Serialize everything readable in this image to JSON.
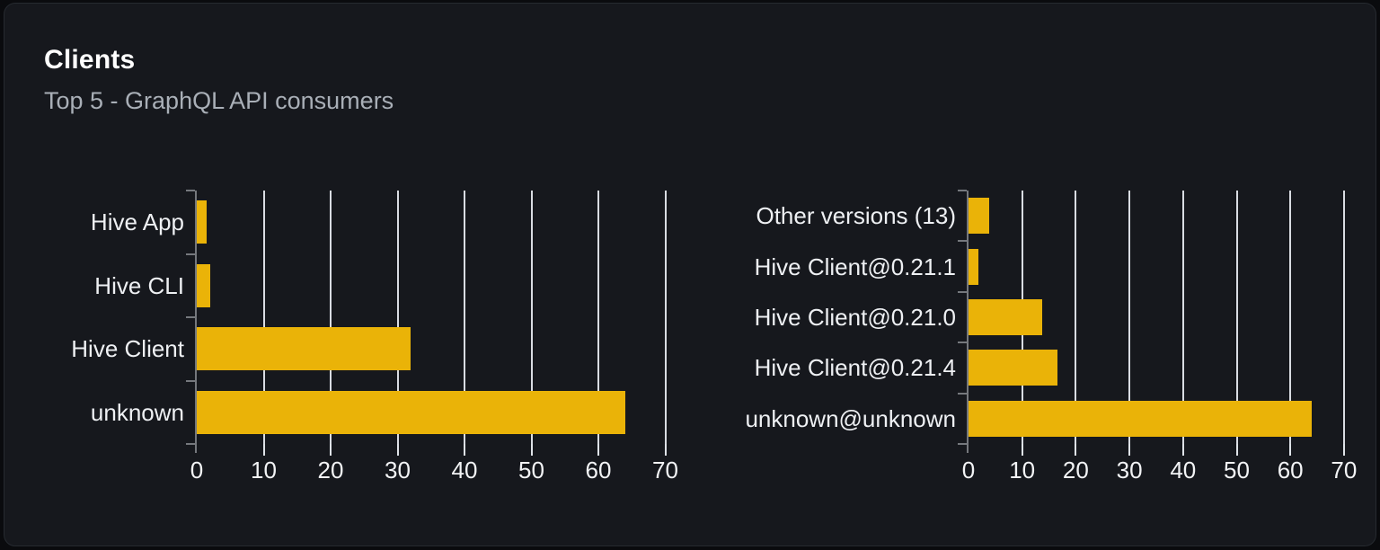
{
  "card": {
    "title": "Clients",
    "subtitle": "Top 5 - GraphQL API consumers"
  },
  "colors": {
    "bar": "#eab308",
    "card_background": "#16181d",
    "page_background": "#0a0b0e",
    "gridline": "#eaeef3",
    "axis": "#75787d",
    "title_text": "#ffffff",
    "subtitle_text": "#a9afb7",
    "label_text": "#eef0f3"
  },
  "chart_data": [
    {
      "type": "bar",
      "orientation": "horizontal",
      "name": "clients-by-name",
      "categories": [
        "Hive App",
        "Hive CLI",
        "Hive Client",
        "unknown"
      ],
      "values": [
        1.5,
        2,
        32,
        64
      ],
      "xlim": [
        0,
        70
      ],
      "xticks": [
        0,
        10,
        20,
        30,
        40,
        50,
        60,
        70
      ],
      "xtick_labels": [
        "0",
        "10",
        "20",
        "30",
        "40",
        "50",
        "60",
        "70"
      ],
      "grid": true,
      "legend": false,
      "bar_color": "#eab308"
    },
    {
      "type": "bar",
      "orientation": "horizontal",
      "name": "clients-by-version",
      "categories": [
        "Other versions (13)",
        "Hive Client@0.21.1",
        "Hive Client@0.21.0",
        "Hive Client@0.21.4",
        "unknown@unknown"
      ],
      "values": [
        3.9,
        1.8,
        13.8,
        16.6,
        64
      ],
      "xlim": [
        0,
        70
      ],
      "xticks": [
        0,
        10,
        20,
        30,
        40,
        50,
        60,
        70
      ],
      "xtick_labels": [
        "0",
        "10",
        "20",
        "30",
        "40",
        "50",
        "60",
        "70"
      ],
      "grid": true,
      "legend": false,
      "bar_color": "#eab308"
    }
  ]
}
